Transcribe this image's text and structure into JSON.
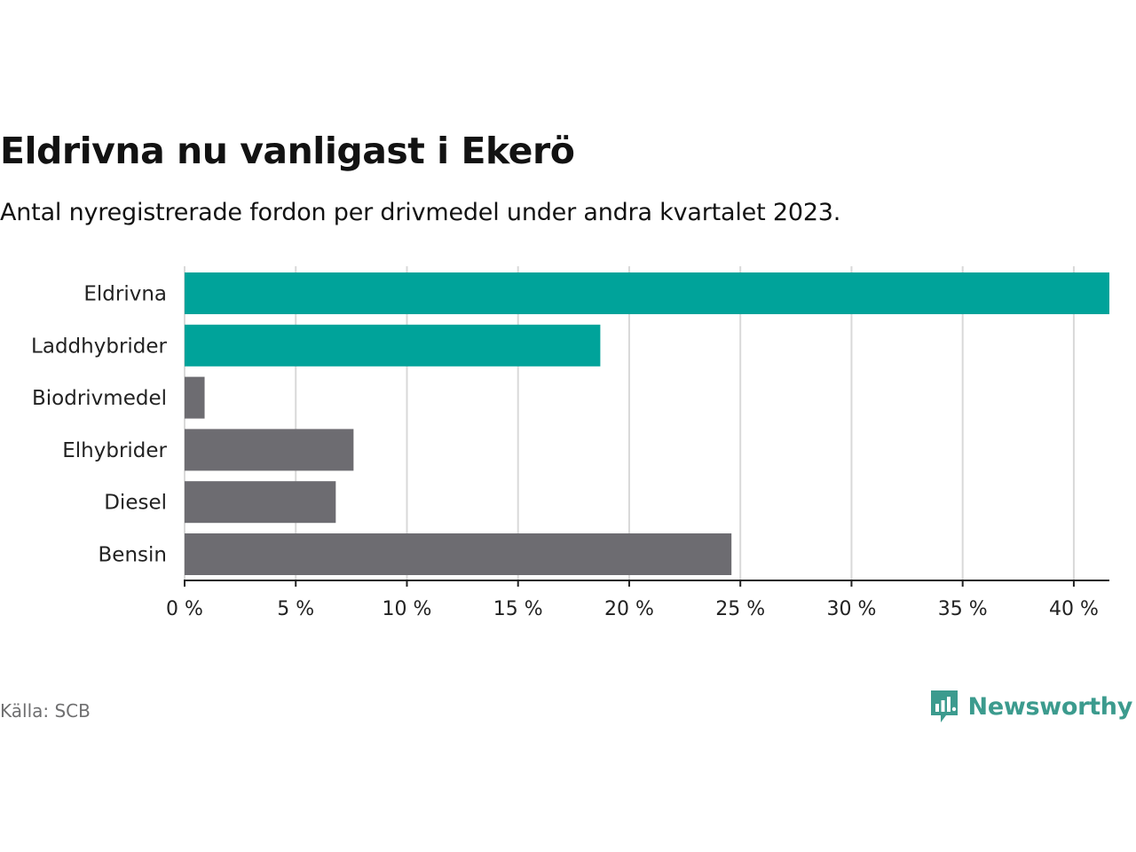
{
  "header": {
    "title": "Eldrivna nu vanligast i Ekerö",
    "subtitle": "Antal nyregistrerade fordon per drivmedel under andra kvartalet 2023."
  },
  "footer": {
    "source": "Källa: SCB",
    "brand": "Newsworthy"
  },
  "colors": {
    "highlight": "#00a39a",
    "neutral": "#6d6c71",
    "grid": "#d9d9d9",
    "axis": "#222222",
    "brand": "#3c9b8e"
  },
  "chart_data": {
    "type": "bar",
    "orientation": "horizontal",
    "title": "Eldrivna nu vanligast i Ekerö",
    "subtitle": "Antal nyregistrerade fordon per drivmedel under andra kvartalet 2023.",
    "categories": [
      "Eldrivna",
      "Laddhybrider",
      "Biodrivmedel",
      "Elhybrider",
      "Diesel",
      "Bensin"
    ],
    "values": [
      41.6,
      18.7,
      0.9,
      7.6,
      6.8,
      24.6
    ],
    "highlighted": [
      true,
      true,
      false,
      false,
      false,
      false
    ],
    "unit": "%",
    "xlim": [
      0,
      41.6
    ],
    "xticks": [
      0,
      5,
      10,
      15,
      20,
      25,
      30,
      35,
      40
    ],
    "xtick_labels": [
      "0 %",
      "5 %",
      "10 %",
      "15 %",
      "20 %",
      "25 %",
      "30 %",
      "35 %",
      "40 %"
    ],
    "xlabel": "",
    "ylabel": "",
    "grid": "vertical"
  }
}
